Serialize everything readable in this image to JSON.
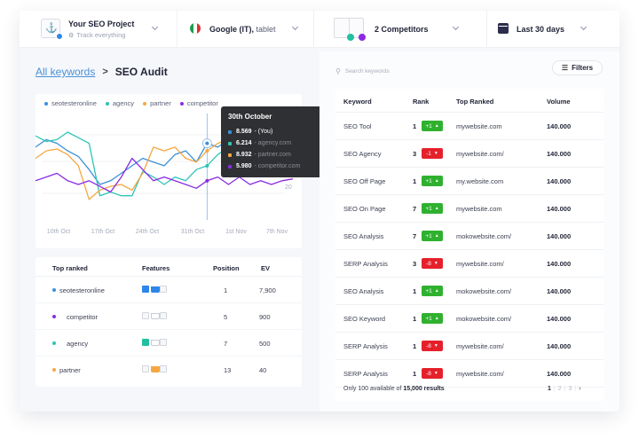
{
  "topbar": {
    "project": {
      "title": "Your SEO Project",
      "subtitle": "Track everything",
      "logo_icon": "project-logo-icon",
      "status_color": "#2f86e8"
    },
    "engine": {
      "name": "Google (IT),",
      "device": " tablet",
      "flag_colors": [
        "#1e9e4a",
        "#ffffff",
        "#d8332f"
      ]
    },
    "competitors": {
      "label": "2 Competitors",
      "dot_colors": [
        "#20c0a0",
        "#8a2be2"
      ]
    },
    "date_range": {
      "label": "Last 30 days",
      "icon": "calendar-icon"
    }
  },
  "breadcrumb": {
    "parent": "All keywords",
    "separator": ">",
    "current": "SEO Audit"
  },
  "colors": {
    "seotesteronline": "#3b8fd9",
    "agency": "#2ec4b6",
    "partner": "#f5a742",
    "competitor": "#8a2be2",
    "up": "#2fb12f",
    "down": "#e5202a"
  },
  "chart_data": {
    "type": "line",
    "title": "",
    "xlabel": "",
    "ylabel": "",
    "x_ticks": [
      "10th Oct",
      "17th Oct",
      "24th Oct",
      "31th Oct",
      "1st Nov",
      "7th Nov"
    ],
    "y_ticks_visible": [
      "20"
    ],
    "grid": true,
    "legend_position": "top-left",
    "legend": [
      "seotesteronline",
      "agency",
      "partner",
      "competitor"
    ],
    "series": [
      {
        "name": "seotesteronline",
        "color": "#3b8fd9",
        "values": [
          38,
          42,
          40,
          36,
          33,
          26,
          18,
          20,
          24,
          28,
          32,
          30,
          28,
          34,
          36,
          30,
          40,
          38,
          42,
          40,
          45,
          40,
          38,
          36,
          34
        ]
      },
      {
        "name": "agency",
        "color": "#2ec4b6",
        "values": [
          44,
          41,
          42,
          46,
          43,
          40,
          12,
          14,
          12,
          12,
          25,
          22,
          18,
          22,
          20,
          26,
          28,
          34,
          38,
          36,
          40,
          38,
          36,
          34,
          32
        ]
      },
      {
        "name": "partner",
        "color": "#f5a742",
        "values": [
          32,
          36,
          37,
          34,
          28,
          10,
          15,
          17,
          18,
          15,
          24,
          38,
          36,
          38,
          32,
          30,
          36,
          40,
          42,
          38,
          36,
          34,
          36,
          34,
          33
        ]
      },
      {
        "name": "competitor",
        "color": "#8a2be2",
        "values": [
          20,
          22,
          24,
          20,
          18,
          20,
          17,
          14,
          22,
          32,
          26,
          20,
          22,
          20,
          18,
          16,
          20,
          22,
          18,
          22,
          18,
          20,
          18,
          20,
          21
        ]
      }
    ],
    "highlight": {
      "x_label": "30th October",
      "index": 16,
      "rows": [
        {
          "value": "8.569",
          "label": "- (You)",
          "color": "#3b8fd9"
        },
        {
          "value": "6.214",
          "label": "- agency.com",
          "color": "#2ec4b6"
        },
        {
          "value": "8.932",
          "label": "- partner.com",
          "color": "#f5a742"
        },
        {
          "value": "5.980",
          "label": "- competitor.com",
          "color": "#8a2be2"
        }
      ]
    }
  },
  "top_ranked": {
    "columns": [
      "Top ranked",
      "Features",
      "Position",
      "EV"
    ],
    "rows": [
      {
        "name": "seotesteronline",
        "color": "#3b8fd9",
        "features": {
          "info": "#2f86e8",
          "cart": "#2f86e8",
          "img": null
        },
        "position": "1",
        "ev": "7,900"
      },
      {
        "name": "competitor",
        "color": "#8a2be2",
        "features": {
          "info": null,
          "cart": null,
          "img": null
        },
        "position": "5",
        "ev": "900"
      },
      {
        "name": "agency",
        "color": "#2ec4b6",
        "features": {
          "info": "#20c0a0",
          "cart": null,
          "img": null
        },
        "position": "7",
        "ev": "500"
      },
      {
        "name": "partner",
        "color": "#f5a742",
        "features": {
          "info": null,
          "cart": "#f5a742",
          "img": null
        },
        "position": "13",
        "ev": "40"
      }
    ]
  },
  "keywords": {
    "search_placeholder": "Search keywords",
    "filters_label": "Filters",
    "columns": [
      "Keyword",
      "Rank",
      "Top Ranked",
      "Volume"
    ],
    "rows": [
      {
        "keyword": "SEO Tool",
        "rank": "1",
        "change": "+1",
        "dir": "up",
        "top": "mywebsite.com",
        "volume": "140.000"
      },
      {
        "keyword": "SEO Agency",
        "rank": "3",
        "change": "-1",
        "dir": "down",
        "top": "mywebsite.com/",
        "volume": "140.000"
      },
      {
        "keyword": "SEO Off Page",
        "rank": "1",
        "change": "+1",
        "dir": "up",
        "top": "my.website.com",
        "volume": "140.000"
      },
      {
        "keyword": "SEO On Page",
        "rank": "7",
        "change": "+1",
        "dir": "up",
        "top": "mywebsite.com",
        "volume": "140.000"
      },
      {
        "keyword": "SEO Analysis",
        "rank": "7",
        "change": "+1",
        "dir": "up",
        "top": "mokowebsite.com/",
        "volume": "140.000"
      },
      {
        "keyword": "SERP Analysis",
        "rank": "3",
        "change": "-8",
        "dir": "down",
        "top": "mywebsite.com/",
        "volume": "140.000"
      },
      {
        "keyword": "SEO Analysis",
        "rank": "1",
        "change": "+1",
        "dir": "up",
        "top": "mokowebsite.com/",
        "volume": "140.000"
      },
      {
        "keyword": "SEO Keyword",
        "rank": "1",
        "change": "+1",
        "dir": "up",
        "top": "mokowebsite.com/",
        "volume": "140.000"
      },
      {
        "keyword": "SERP Analysis",
        "rank": "1",
        "change": "-8",
        "dir": "down",
        "top": "mywebsite.com/",
        "volume": "140.000"
      },
      {
        "keyword": "SERP Analysis",
        "rank": "1",
        "change": "-8",
        "dir": "down",
        "top": "mywebsite.com/",
        "volume": "140.000"
      }
    ],
    "footer": {
      "prefix": "Only 100 available of ",
      "total": "15,000 results"
    },
    "pagination": {
      "pages": [
        "1",
        "2",
        "3"
      ],
      "current": "1",
      "next": "›"
    }
  }
}
